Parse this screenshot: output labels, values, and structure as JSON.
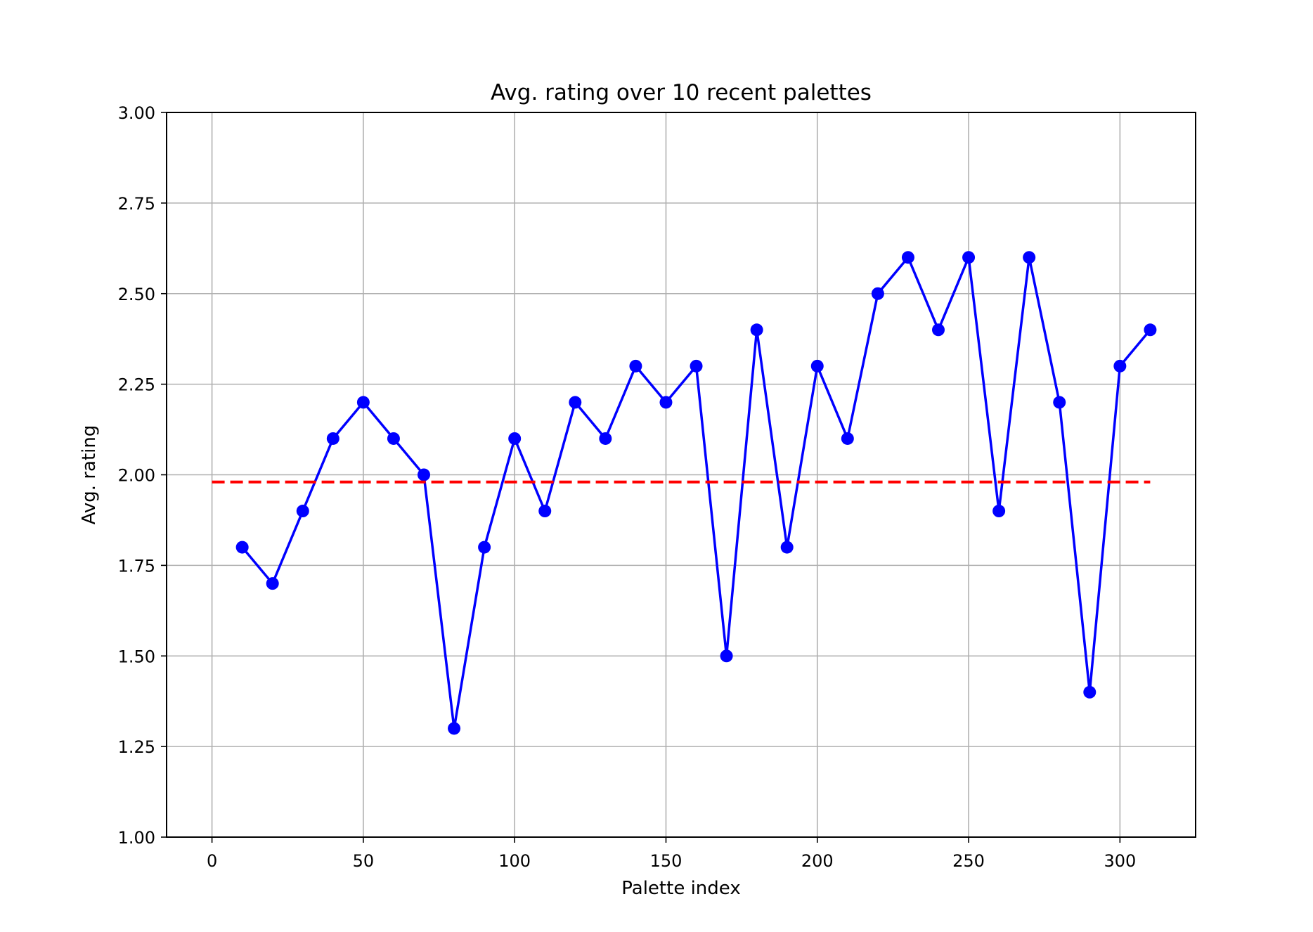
{
  "chart_data": {
    "type": "line",
    "title": "Avg. rating over 10 recent palettes",
    "xlabel": "Palette index",
    "ylabel": "Avg. rating",
    "xlim": [
      -15,
      325
    ],
    "ylim": [
      1.0,
      3.0
    ],
    "x_ticks": [
      0,
      50,
      100,
      150,
      200,
      250,
      300
    ],
    "x_tick_labels": [
      "0",
      "50",
      "100",
      "150",
      "200",
      "250",
      "300"
    ],
    "y_ticks": [
      1.0,
      1.25,
      1.5,
      1.75,
      2.0,
      2.25,
      2.5,
      2.75,
      3.0
    ],
    "y_tick_labels": [
      "1.00",
      "1.25",
      "1.50",
      "1.75",
      "2.00",
      "2.25",
      "2.50",
      "2.75",
      "3.00"
    ],
    "grid": true,
    "series": [
      {
        "style": "line-with-markers",
        "color": "#0000ff",
        "x": [
          10,
          20,
          30,
          40,
          50,
          60,
          70,
          80,
          90,
          100,
          110,
          120,
          130,
          140,
          150,
          160,
          170,
          180,
          190,
          200,
          210,
          220,
          230,
          240,
          250,
          260,
          270,
          280,
          290,
          300,
          310
        ],
        "y": [
          1.8,
          1.7,
          1.9,
          2.1,
          2.2,
          2.1,
          2.0,
          1.3,
          1.8,
          2.1,
          1.9,
          2.2,
          2.1,
          2.3,
          2.2,
          2.3,
          1.5,
          2.4,
          1.8,
          2.3,
          2.1,
          2.5,
          2.6,
          2.4,
          2.6,
          1.9,
          2.6,
          2.2,
          1.4,
          2.3,
          2.4
        ]
      },
      {
        "style": "dashed-line",
        "color": "#ff0000",
        "x": [
          0,
          310
        ],
        "y": [
          1.98,
          1.98
        ]
      }
    ]
  }
}
